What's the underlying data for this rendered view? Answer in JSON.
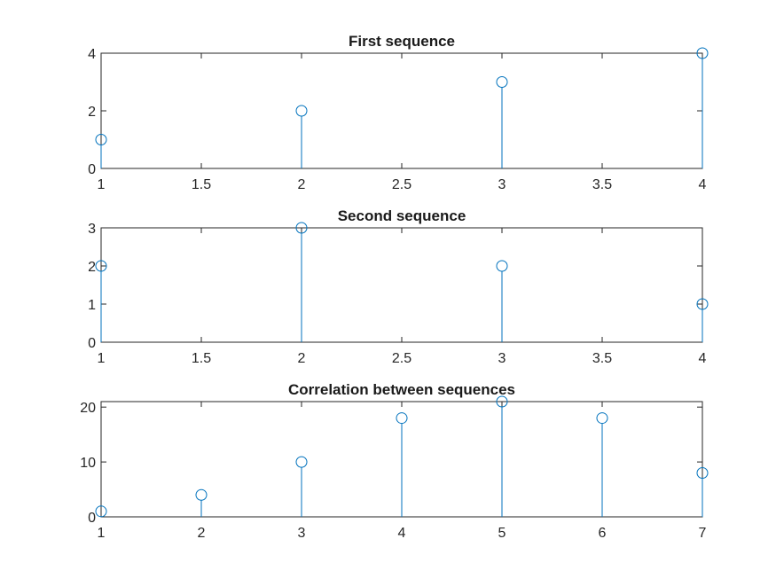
{
  "chart_data": [
    {
      "type": "stem",
      "title": "First sequence",
      "x": [
        1,
        2,
        3,
        4
      ],
      "values": [
        1,
        2,
        3,
        4
      ],
      "xlim": [
        1,
        4
      ],
      "ylim": [
        0,
        4
      ],
      "xticks": [
        1,
        1.5,
        2,
        2.5,
        3,
        3.5,
        4
      ],
      "xtick_labels": [
        "1",
        "1.5",
        "2",
        "2.5",
        "3",
        "3.5",
        "4"
      ],
      "yticks": [
        0,
        2,
        4
      ],
      "ytick_labels": [
        "0",
        "2",
        "4"
      ],
      "grid": false,
      "color": "#0072BD"
    },
    {
      "type": "stem",
      "title": "Second sequence",
      "x": [
        1,
        2,
        3,
        4
      ],
      "values": [
        2,
        3,
        2,
        1
      ],
      "xlim": [
        1,
        4
      ],
      "ylim": [
        0,
        3
      ],
      "xticks": [
        1,
        1.5,
        2,
        2.5,
        3,
        3.5,
        4
      ],
      "xtick_labels": [
        "1",
        "1.5",
        "2",
        "2.5",
        "3",
        "3.5",
        "4"
      ],
      "yticks": [
        0,
        1,
        2,
        3
      ],
      "ytick_labels": [
        "0",
        "1",
        "2",
        "3"
      ],
      "grid": false,
      "color": "#0072BD"
    },
    {
      "type": "stem",
      "title": "Correlation between sequences",
      "x": [
        1,
        2,
        3,
        4,
        5,
        6,
        7
      ],
      "values": [
        1,
        4,
        10,
        18,
        21,
        18,
        8
      ],
      "xlim": [
        1,
        7
      ],
      "ylim": [
        0,
        21
      ],
      "xticks": [
        1,
        2,
        3,
        4,
        5,
        6,
        7
      ],
      "xtick_labels": [
        "1",
        "2",
        "3",
        "4",
        "5",
        "6",
        "7"
      ],
      "yticks": [
        0,
        10,
        20
      ],
      "ytick_labels": [
        "0",
        "10",
        "20"
      ],
      "grid": false,
      "color": "#0072BD"
    }
  ]
}
